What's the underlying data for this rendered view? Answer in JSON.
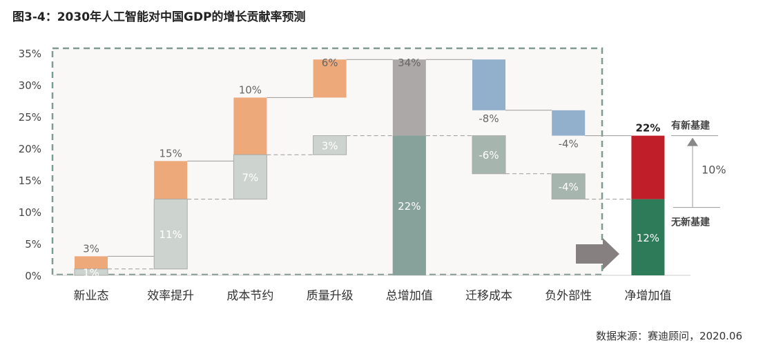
{
  "chart_data": {
    "type": "waterfall",
    "title": "图3-4：2030年人工智能对中国GDP的增长贡献率预测",
    "source": "数据来源：赛迪顾问，2020.06",
    "ylim": [
      0,
      35
    ],
    "yticks": [
      "0%",
      "5%",
      "10%",
      "15%",
      "20%",
      "25%",
      "30%",
      "35%"
    ],
    "categories": [
      "新业态",
      "效率提升",
      "成本节约",
      "质量升级",
      "总增加值",
      "迁移成本",
      "负外部性",
      "净增加值"
    ],
    "series": [
      {
        "name": "有新基建",
        "values": [
          3,
          15,
          10,
          6,
          34,
          -8,
          -4,
          22
        ],
        "labels": [
          "3%",
          "15%",
          "10%",
          "6%",
          "34%",
          "-8%",
          "-4%",
          "22%"
        ]
      },
      {
        "name": "无新基建",
        "values": [
          1,
          11,
          7,
          3,
          22,
          -6,
          -4,
          12
        ],
        "labels": [
          "1%",
          "11%",
          "7%",
          "3%",
          "22%",
          "-6%",
          "-4%",
          "12%"
        ]
      }
    ],
    "annotations": {
      "with_infra": "有新基建",
      "without_infra": "无新基建",
      "difference": "10%"
    },
    "colors": {
      "pos": "#EDA97A",
      "pos2": "#CDD4D0",
      "total": "#ADA8A8",
      "total2": "#86A29A",
      "neg": "#92B0CC",
      "neg2": "#A6B5AD",
      "net": "#C01F2A",
      "net2": "#2E7B5A"
    }
  }
}
